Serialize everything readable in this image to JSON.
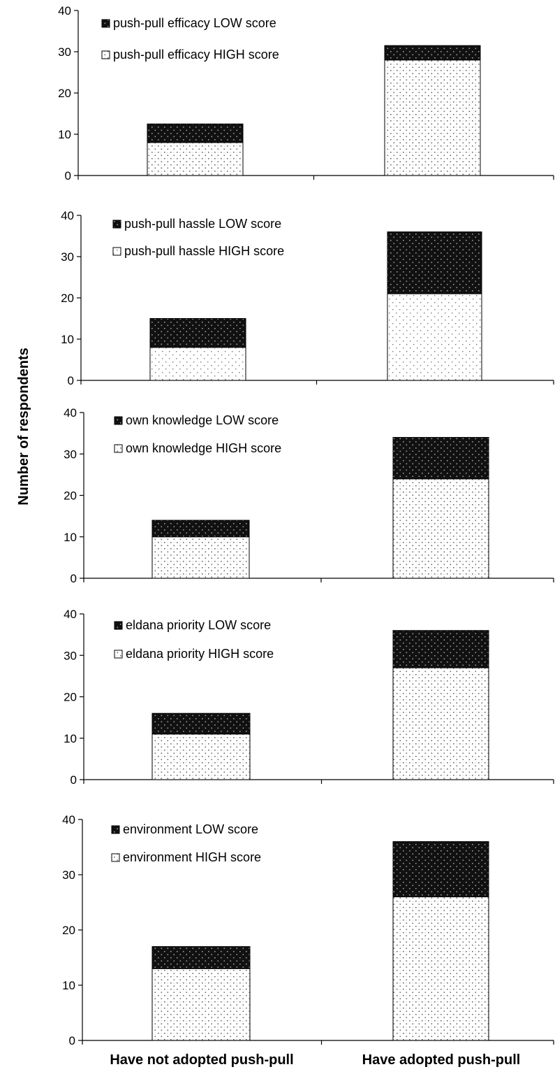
{
  "chart_data": {
    "type": "bar",
    "stacked": true,
    "ylabel": "Number of respondents",
    "categories": [
      "Have not adopted push-pull",
      "Have adopted push-pull"
    ],
    "colors": {
      "low": "#111111",
      "low_pattern": "#8a8a8a",
      "high": "#ffffff",
      "high_pattern": "#707070",
      "axis": "#000000"
    },
    "panels": [
      {
        "ylim": [
          0,
          40
        ],
        "yticks": [
          "0",
          "10",
          "20",
          "30",
          "40"
        ],
        "legend_position": "top-left",
        "series": [
          {
            "name": "push-pull efficacy HIGH score",
            "values": [
              8,
              28
            ]
          },
          {
            "name": "push-pull efficacy LOW score",
            "values": [
              4.5,
              3.5
            ]
          }
        ]
      },
      {
        "ylim": [
          0,
          40
        ],
        "yticks": [
          "0",
          "10",
          "20",
          "30",
          "40"
        ],
        "legend_position": "top-left",
        "series": [
          {
            "name": "push-pull hassle HIGH score",
            "values": [
              8,
              21
            ]
          },
          {
            "name": "push-pull hassle LOW score",
            "values": [
              7,
              15
            ]
          }
        ]
      },
      {
        "ylim": [
          0,
          40
        ],
        "yticks": [
          "0",
          "10",
          "20",
          "30",
          "40"
        ],
        "legend_position": "top-left",
        "series": [
          {
            "name": "own knowledge HIGH score",
            "values": [
              10,
              24
            ]
          },
          {
            "name": "own knowledge LOW score",
            "values": [
              4,
              10
            ]
          }
        ]
      },
      {
        "ylim": [
          0,
          40
        ],
        "yticks": [
          "0",
          "10",
          "20",
          "30",
          "40"
        ],
        "legend_position": "top-left",
        "series": [
          {
            "name": "eldana priority HIGH score",
            "values": [
              11,
              27
            ]
          },
          {
            "name": "eldana priority LOW score",
            "values": [
              5,
              9
            ]
          }
        ]
      },
      {
        "ylim": [
          0,
          40
        ],
        "yticks": [
          "0",
          "10",
          "20",
          "30",
          "40"
        ],
        "legend_position": "top-left",
        "series": [
          {
            "name": "environment HIGH score",
            "values": [
              13,
              26
            ]
          },
          {
            "name": "environment LOW score",
            "values": [
              4,
              10
            ]
          }
        ]
      }
    ]
  }
}
